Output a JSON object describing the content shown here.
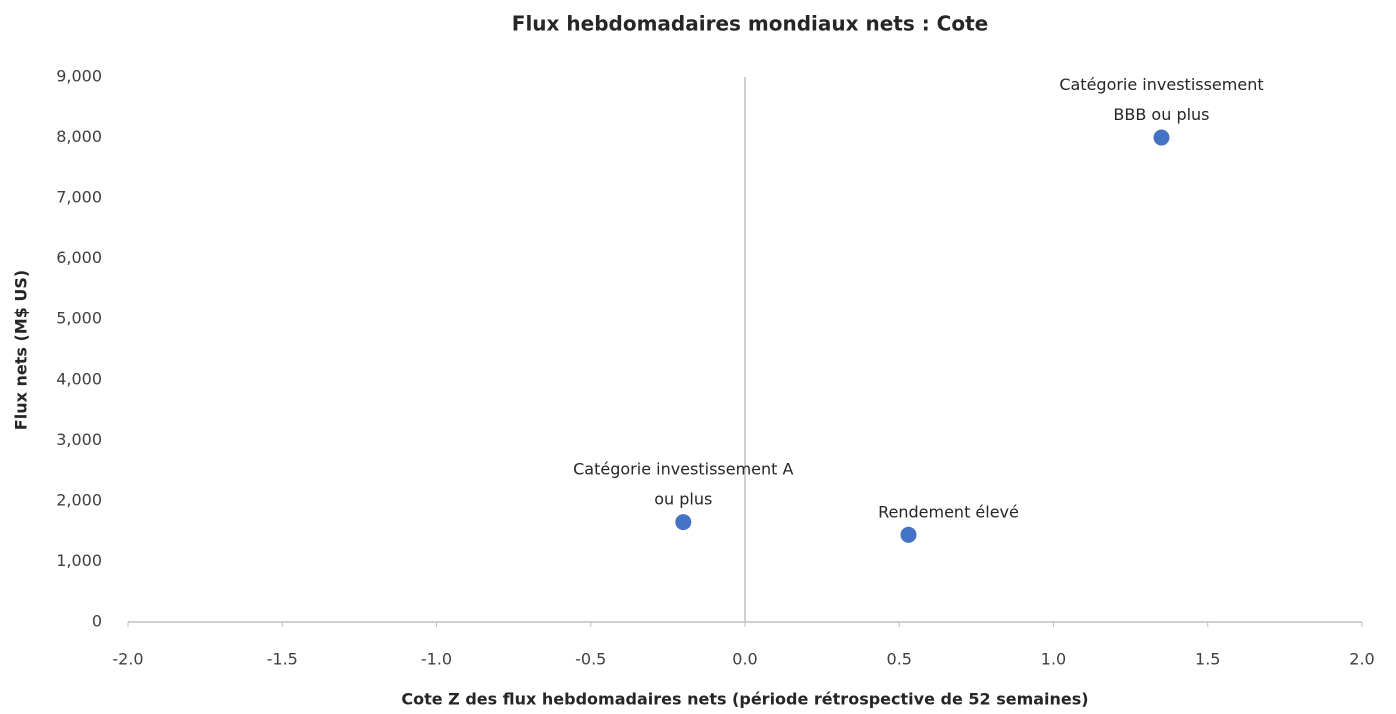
{
  "chart_data": {
    "type": "scatter",
    "title": "Flux hebdomadaires mondiaux nets : Cote",
    "x_label": "Cote Z des flux hebdomadaires nets (période rétrospective de 52 semaines)",
    "y_label": "Flux nets (M$ US)",
    "x": [
      -0.2,
      0.53,
      1.35
    ],
    "y": [
      1650,
      1440,
      8000
    ],
    "point_labels": [
      [
        "Catégorie investissement A",
        "ou plus"
      ],
      [
        "Rendement élevé"
      ],
      [
        "Catégorie investissement",
        "BBB ou plus"
      ]
    ],
    "color": "#4472c4",
    "xlim": [
      -2,
      2
    ],
    "ylim": [
      0,
      9000
    ],
    "xticks": [
      {
        "value": -2,
        "label": "-2.0"
      },
      {
        "value": -1.5,
        "label": "-1.5"
      },
      {
        "value": -1,
        "label": "-1.0"
      },
      {
        "value": -0.5,
        "label": "-0.5"
      },
      {
        "value": 0,
        "label": "0.0"
      },
      {
        "value": 0.5,
        "label": "0.5"
      },
      {
        "value": 1,
        "label": "1.0"
      },
      {
        "value": 1.5,
        "label": "1.5"
      },
      {
        "value": 2,
        "label": "2.0"
      }
    ],
    "yticks": [
      0,
      {
        "value": 1000,
        "label": "1,000"
      },
      {
        "value": 2000,
        "label": "2,000"
      },
      {
        "value": 3000,
        "label": "3,000"
      },
      {
        "value": 4000,
        "label": "4,000"
      },
      {
        "value": 5000,
        "label": "5,000"
      },
      {
        "value": 6000,
        "label": "6,000"
      },
      {
        "value": 7000,
        "label": "7,000"
      },
      {
        "value": 8000,
        "label": "8,000"
      },
      {
        "value": 9000,
        "label": "9,000"
      }
    ],
    "grid": false
  }
}
